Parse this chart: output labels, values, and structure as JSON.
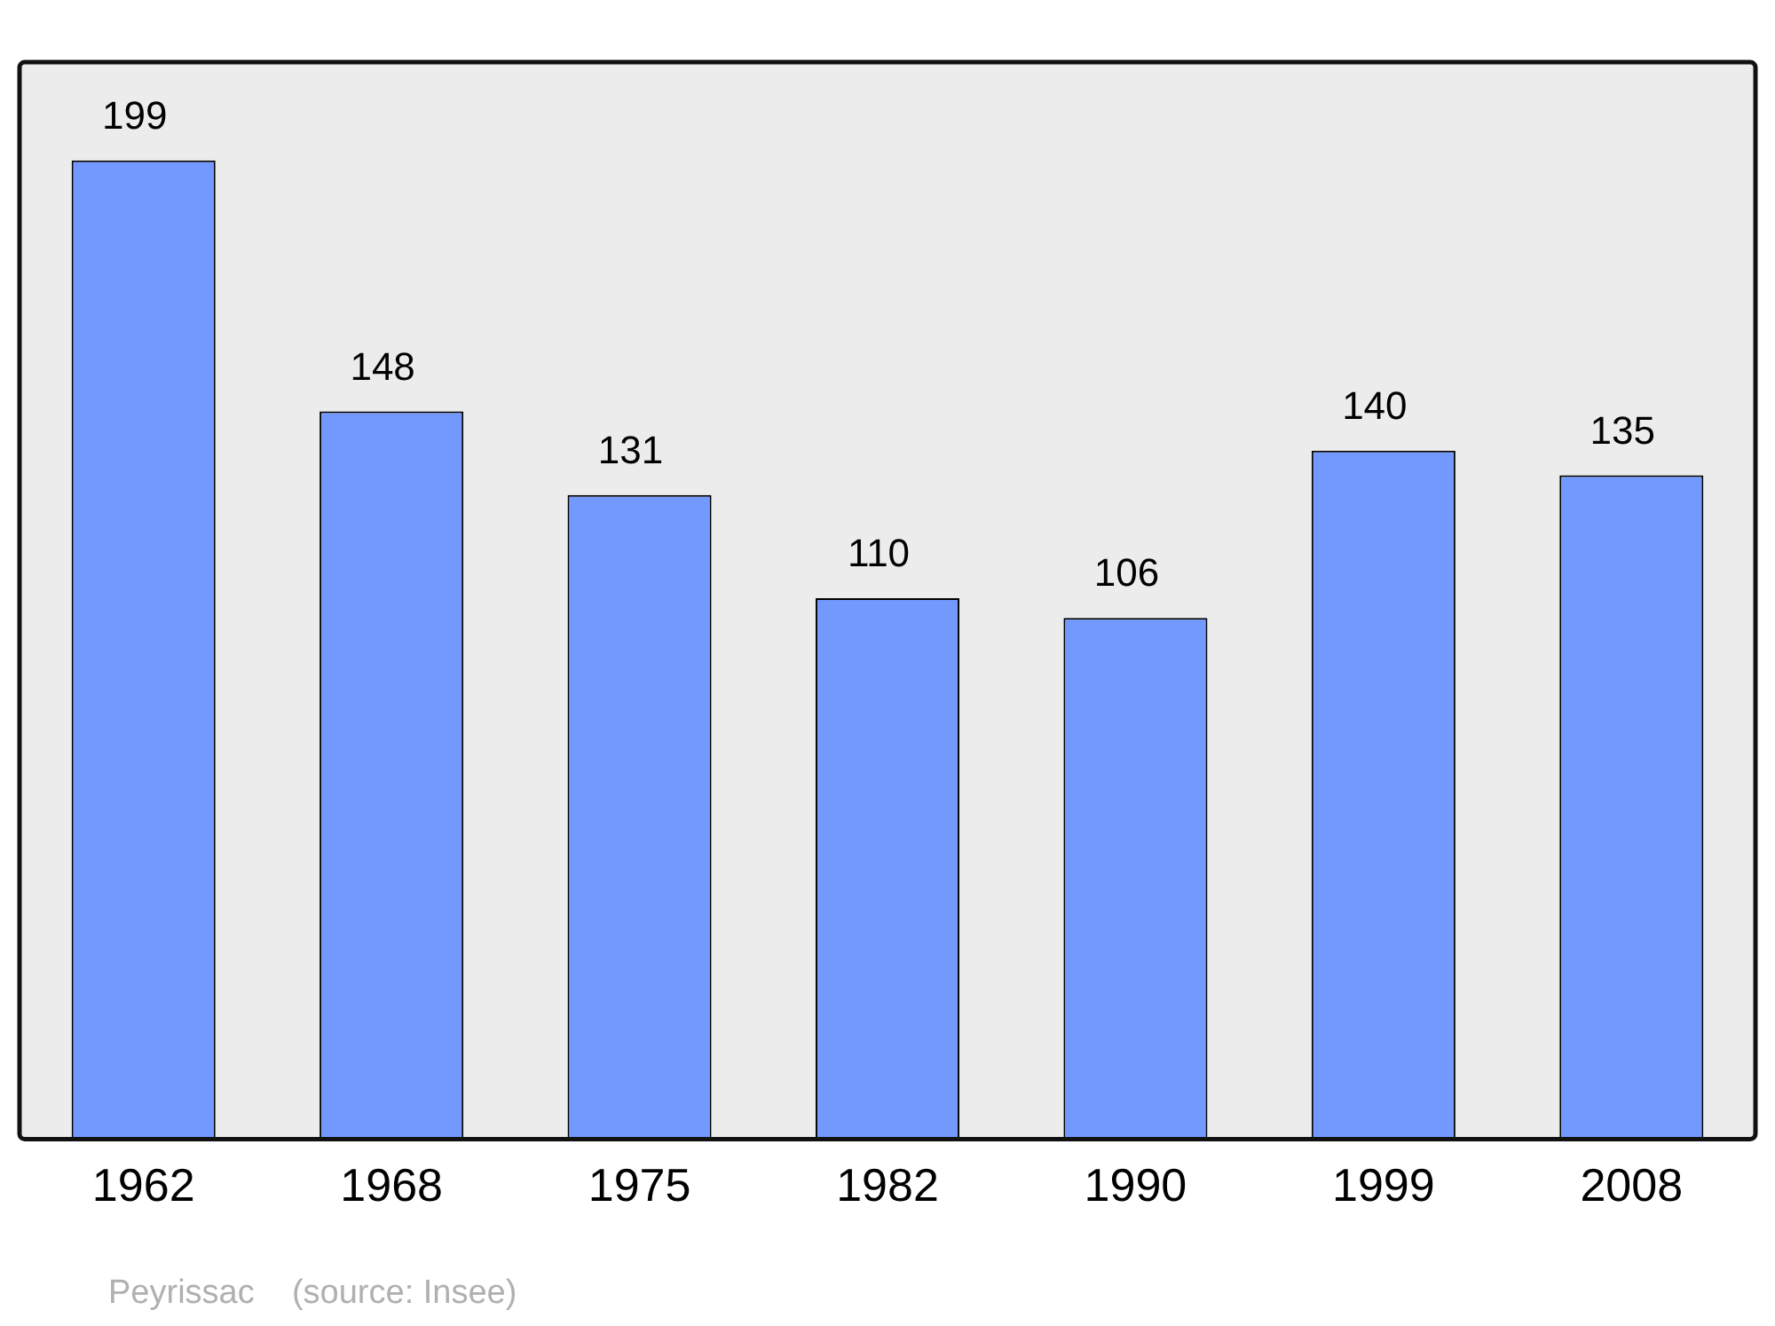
{
  "chart_data": {
    "type": "bar",
    "categories": [
      "1962",
      "1968",
      "1975",
      "1982",
      "1990",
      "1999",
      "2008"
    ],
    "values": [
      199,
      148,
      131,
      110,
      106,
      140,
      135
    ],
    "color": "#7399ff",
    "ylim": [
      0,
      219
    ],
    "data_labels": true,
    "tick_labels": "x",
    "grid": false,
    "annotations": [
      "Peyrissac    (source: Insee)"
    ]
  }
}
